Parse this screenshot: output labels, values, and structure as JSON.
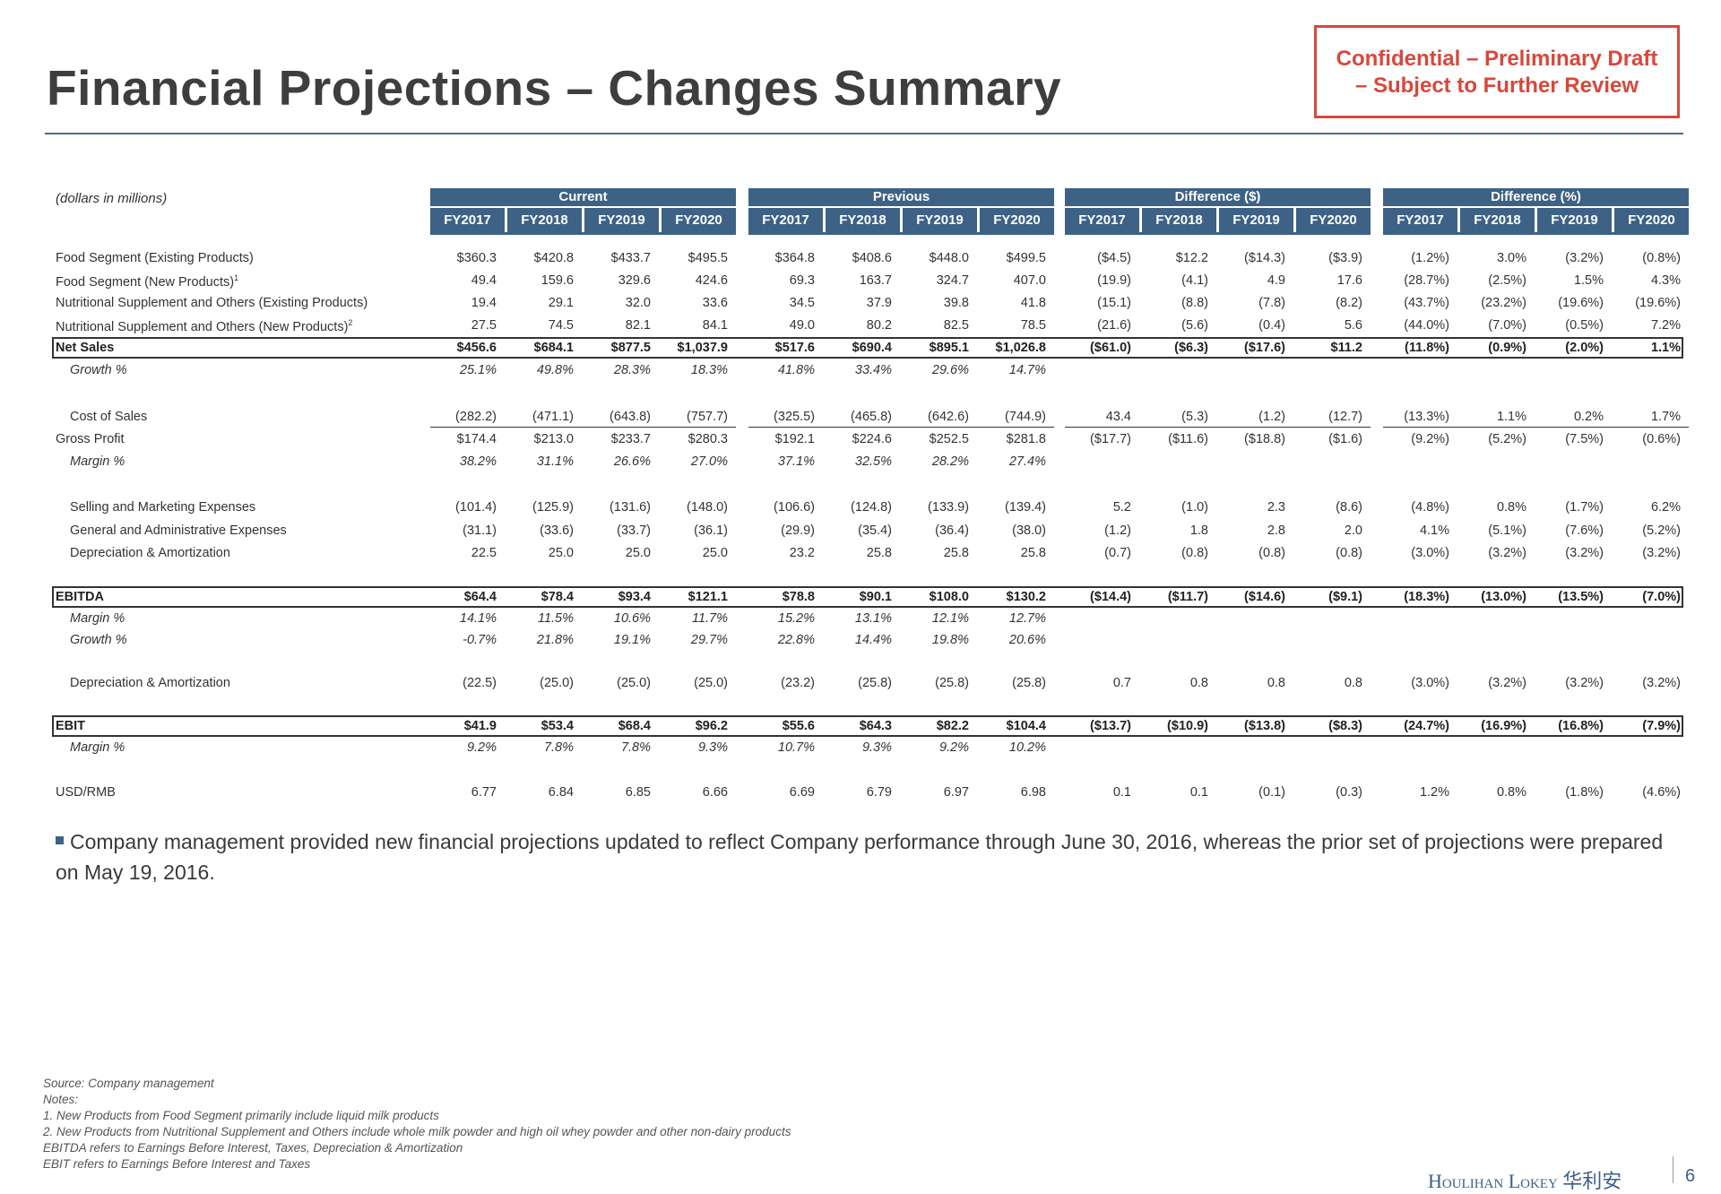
{
  "header": {
    "title": "Financial Projections – Changes Summary",
    "confidential": [
      "Confidential – Preliminary Draft",
      "– Subject to Further Review"
    ],
    "units_note": "(dollars in millions)"
  },
  "groups": [
    {
      "name": "Current",
      "years": [
        "FY2017",
        "FY2018",
        "FY2019",
        "FY2020"
      ]
    },
    {
      "name": "Previous",
      "years": [
        "FY2017",
        "FY2018",
        "FY2019",
        "FY2020"
      ]
    },
    {
      "name": "Difference ($)",
      "years": [
        "FY2017",
        "FY2018",
        "FY2019",
        "FY2020"
      ]
    },
    {
      "name": "Difference (%)",
      "years": [
        "FY2017",
        "FY2018",
        "FY2019",
        "FY2020"
      ]
    }
  ],
  "rows": [
    {
      "label": "Food Segment (Existing Products)",
      "style": "normal",
      "values": [
        "$360.3",
        "$420.8",
        "$433.7",
        "$495.5",
        "$364.8",
        "$408.6",
        "$448.0",
        "$499.5",
        "($4.5)",
        "$12.2",
        "($14.3)",
        "($3.9)",
        "(1.2%)",
        "3.0%",
        "(3.2%)",
        "(0.8%)"
      ]
    },
    {
      "label": "Food Segment (New Products)",
      "sup": "1",
      "style": "normal",
      "values": [
        "49.4",
        "159.6",
        "329.6",
        "424.6",
        "69.3",
        "163.7",
        "324.7",
        "407.0",
        "(19.9)",
        "(4.1)",
        "4.9",
        "17.6",
        "(28.7%)",
        "(2.5%)",
        "1.5%",
        "4.3%"
      ]
    },
    {
      "label": "Nutritional Supplement and Others (Existing Products)",
      "style": "normal",
      "values": [
        "19.4",
        "29.1",
        "32.0",
        "33.6",
        "34.5",
        "37.9",
        "39.8",
        "41.8",
        "(15.1)",
        "(8.8)",
        "(7.8)",
        "(8.2)",
        "(43.7%)",
        "(23.2%)",
        "(19.6%)",
        "(19.6%)"
      ]
    },
    {
      "label": "Nutritional Supplement and Others (New Products)",
      "sup": "2",
      "style": "normal",
      "values": [
        "27.5",
        "74.5",
        "82.1",
        "84.1",
        "49.0",
        "80.2",
        "82.5",
        "78.5",
        "(21.6)",
        "(5.6)",
        "(0.4)",
        "5.6",
        "(44.0%)",
        "(7.0%)",
        "(0.5%)",
        "7.2%"
      ]
    },
    {
      "label": "Net Sales",
      "style": "bold",
      "values": [
        "$456.6",
        "$684.1",
        "$877.5",
        "$1,037.9",
        "$517.6",
        "$690.4",
        "$895.1",
        "$1,026.8",
        "($61.0)",
        "($6.3)",
        "($17.6)",
        "$11.2",
        "(11.8%)",
        "(0.9%)",
        "(2.0%)",
        "1.1%"
      ]
    },
    {
      "label": "Growth %",
      "style": "italic",
      "values": [
        "25.1%",
        "49.8%",
        "28.3%",
        "18.3%",
        "41.8%",
        "33.4%",
        "29.6%",
        "14.7%",
        "",
        "",
        "",
        "",
        "",
        "",
        "",
        ""
      ]
    },
    {
      "label": "Cost of Sales",
      "style": "normal",
      "values": [
        "(282.2)",
        "(471.1)",
        "(643.8)",
        "(757.7)",
        "(325.5)",
        "(465.8)",
        "(642.6)",
        "(744.9)",
        "43.4",
        "(5.3)",
        "(1.2)",
        "(12.7)",
        "(13.3%)",
        "1.1%",
        "0.2%",
        "1.7%"
      ]
    },
    {
      "label": "Gross Profit",
      "style": "normal",
      "values": [
        "$174.4",
        "$213.0",
        "$233.7",
        "$280.3",
        "$192.1",
        "$224.6",
        "$252.5",
        "$281.8",
        "($17.7)",
        "($11.6)",
        "($18.8)",
        "($1.6)",
        "(9.2%)",
        "(5.2%)",
        "(7.5%)",
        "(0.6%)"
      ]
    },
    {
      "label": "Margin %",
      "style": "italic",
      "values": [
        "38.2%",
        "31.1%",
        "26.6%",
        "27.0%",
        "37.1%",
        "32.5%",
        "28.2%",
        "27.4%",
        "",
        "",
        "",
        "",
        "",
        "",
        "",
        ""
      ]
    },
    {
      "label": "Selling and Marketing Expenses",
      "style": "normal",
      "values": [
        "(101.4)",
        "(125.9)",
        "(131.6)",
        "(148.0)",
        "(106.6)",
        "(124.8)",
        "(133.9)",
        "(139.4)",
        "5.2",
        "(1.0)",
        "2.3",
        "(8.6)",
        "(4.8%)",
        "0.8%",
        "(1.7%)",
        "6.2%"
      ]
    },
    {
      "label": "General and Administrative Expenses",
      "style": "normal",
      "values": [
        "(31.1)",
        "(33.6)",
        "(33.7)",
        "(36.1)",
        "(29.9)",
        "(35.4)",
        "(36.4)",
        "(38.0)",
        "(1.2)",
        "1.8",
        "2.8",
        "2.0",
        "4.1%",
        "(5.1%)",
        "(7.6%)",
        "(5.2%)"
      ]
    },
    {
      "label": "Depreciation & Amortization",
      "style": "normal",
      "values": [
        "22.5",
        "25.0",
        "25.0",
        "25.0",
        "23.2",
        "25.8",
        "25.8",
        "25.8",
        "(0.7)",
        "(0.8)",
        "(0.8)",
        "(0.8)",
        "(3.0%)",
        "(3.2%)",
        "(3.2%)",
        "(3.2%)"
      ]
    },
    {
      "label": "EBITDA",
      "style": "bold",
      "values": [
        "$64.4",
        "$78.4",
        "$93.4",
        "$121.1",
        "$78.8",
        "$90.1",
        "$108.0",
        "$130.2",
        "($14.4)",
        "($11.7)",
        "($14.6)",
        "($9.1)",
        "(18.3%)",
        "(13.0%)",
        "(13.5%)",
        "(7.0%)"
      ]
    },
    {
      "label": "Margin %",
      "style": "italic",
      "values": [
        "14.1%",
        "11.5%",
        "10.6%",
        "11.7%",
        "15.2%",
        "13.1%",
        "12.1%",
        "12.7%",
        "",
        "",
        "",
        "",
        "",
        "",
        "",
        ""
      ]
    },
    {
      "label": "Growth %",
      "style": "italic",
      "values": [
        "-0.7%",
        "21.8%",
        "19.1%",
        "29.7%",
        "22.8%",
        "14.4%",
        "19.8%",
        "20.6%",
        "",
        "",
        "",
        "",
        "",
        "",
        "",
        ""
      ]
    },
    {
      "label": "Depreciation & Amortization",
      "style": "normal",
      "values": [
        "(22.5)",
        "(25.0)",
        "(25.0)",
        "(25.0)",
        "(23.2)",
        "(25.8)",
        "(25.8)",
        "(25.8)",
        "0.7",
        "0.8",
        "0.8",
        "0.8",
        "(3.0%)",
        "(3.2%)",
        "(3.2%)",
        "(3.2%)"
      ]
    },
    {
      "label": "EBIT",
      "style": "bold",
      "values": [
        "$41.9",
        "$53.4",
        "$68.4",
        "$96.2",
        "$55.6",
        "$64.3",
        "$82.2",
        "$104.4",
        "($13.7)",
        "($10.9)",
        "($13.8)",
        "($8.3)",
        "(24.7%)",
        "(16.9%)",
        "(16.8%)",
        "(7.9%)"
      ]
    },
    {
      "label": "Margin %",
      "style": "italic",
      "values": [
        "9.2%",
        "7.8%",
        "7.8%",
        "9.3%",
        "10.7%",
        "9.3%",
        "9.2%",
        "10.2%",
        "",
        "",
        "",
        "",
        "",
        "",
        "",
        ""
      ]
    },
    {
      "label": "USD/RMB",
      "style": "normal",
      "values": [
        "6.77",
        "6.84",
        "6.85",
        "6.66",
        "6.69",
        "6.79",
        "6.97",
        "6.98",
        "0.1",
        "0.1",
        "(0.1)",
        "(0.3)",
        "1.2%",
        "0.8%",
        "(1.8%)",
        "(4.6%)"
      ]
    }
  ],
  "bullet": "Company management provided new financial projections updated to reflect Company performance through June 30, 2016, whereas the prior set of projections were prepared on May 19, 2016.",
  "notes": [
    "Source: Company management",
    "Notes:",
    "1. New Products from Food Segment primarily include liquid milk products",
    "2. New Products from Nutritional Supplement and Others include whole milk powder and high oil whey powder and other non-dairy products",
    "EBITDA refers to Earnings Before Interest, Taxes, Depreciation & Amortization",
    "EBIT refers to Earnings Before Interest and Taxes"
  ],
  "footer": {
    "logo": "Houlihan Lokey 华利安",
    "page": "6"
  }
}
